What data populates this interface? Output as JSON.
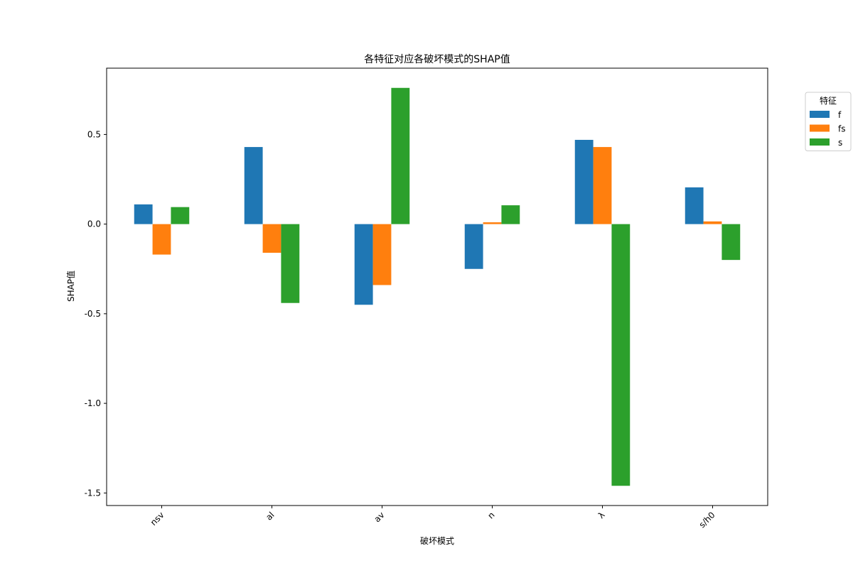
{
  "chart_data": {
    "type": "bar",
    "title": "各特征对应各破坏模式的SHAP值",
    "xlabel": "破坏模式",
    "ylabel": "SHAP值",
    "categories": [
      "nsv",
      "al",
      "av",
      "n",
      "λ",
      "s/h0"
    ],
    "series": [
      {
        "name": "f",
        "color": "#1f77b4",
        "values": [
          0.11,
          0.43,
          -0.45,
          -0.25,
          0.47,
          0.205
        ]
      },
      {
        "name": "fs",
        "color": "#ff7f0e",
        "values": [
          -0.17,
          -0.16,
          -0.34,
          0.01,
          0.43,
          0.015
        ]
      },
      {
        "name": "s",
        "color": "#2ca02c",
        "values": [
          0.095,
          -0.44,
          0.76,
          0.105,
          -1.46,
          -0.2
        ]
      }
    ],
    "ylim": [
      -1.57,
      0.87
    ],
    "yticks": [
      0.5,
      0.0,
      -0.5,
      -1.0,
      -1.5
    ],
    "ytick_labels": [
      "0.5",
      "0.0",
      "-0.5",
      "-1.0",
      "-1.5"
    ],
    "legend": {
      "title": "特征",
      "placement": "outside-top-right"
    },
    "grid": false
  }
}
